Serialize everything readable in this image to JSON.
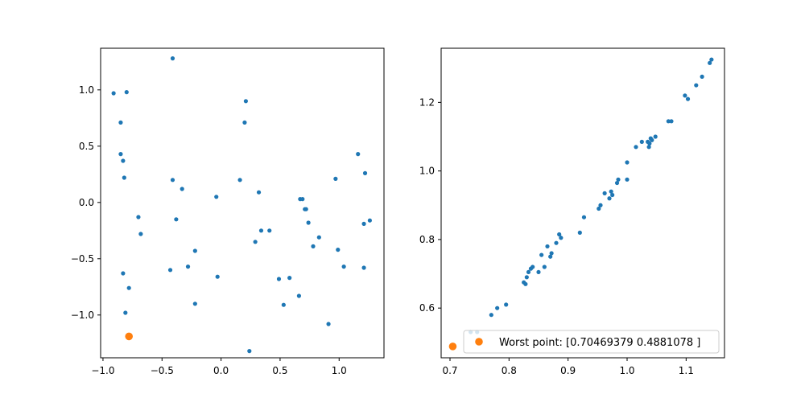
{
  "colors": {
    "blue": "#1f77b4",
    "orange": "#ff7f0e"
  },
  "chart_data": [
    {
      "type": "scatter",
      "title": "",
      "xlabel": "",
      "ylabel": "",
      "xlim": [
        -1.02,
        1.38
      ],
      "ylim": [
        -1.38,
        1.37
      ],
      "xticks": [
        -1.0,
        -0.5,
        0.0,
        0.5,
        1.0
      ],
      "xtick_labels": [
        "−1.0",
        "−0.5",
        "0.0",
        "0.5",
        "1.0"
      ],
      "yticks": [
        -1.0,
        -0.5,
        0.0,
        0.5,
        1.0
      ],
      "yticks_labels": [
        "−1.0",
        "−0.5",
        "0.0",
        "0.5",
        "1.0"
      ],
      "series": [
        {
          "color": "#1f77b4",
          "marker_size": "small",
          "points": [
            [
              -0.91,
              0.97
            ],
            [
              -0.8,
              0.98
            ],
            [
              -0.85,
              0.71
            ],
            [
              -0.85,
              0.43
            ],
            [
              -0.83,
              0.37
            ],
            [
              -0.82,
              0.22
            ],
            [
              -0.41,
              1.28
            ],
            [
              0.21,
              0.9
            ],
            [
              0.2,
              0.71
            ],
            [
              -0.7,
              -0.13
            ],
            [
              -0.68,
              -0.28
            ],
            [
              -0.41,
              0.2
            ],
            [
              -0.33,
              0.12
            ],
            [
              -0.38,
              -0.15
            ],
            [
              -0.22,
              -0.43
            ],
            [
              -0.28,
              -0.57
            ],
            [
              -0.43,
              -0.6
            ],
            [
              -0.22,
              -0.9
            ],
            [
              -0.83,
              -0.63
            ],
            [
              -0.78,
              -0.76
            ],
            [
              -0.81,
              -0.98
            ],
            [
              -0.04,
              0.05
            ],
            [
              -0.03,
              -0.66
            ],
            [
              0.16,
              0.2
            ],
            [
              0.32,
              0.09
            ],
            [
              0.34,
              -0.25
            ],
            [
              0.41,
              -0.25
            ],
            [
              0.29,
              -0.35
            ],
            [
              0.24,
              -1.32
            ],
            [
              0.49,
              -0.68
            ],
            [
              0.53,
              -0.91
            ],
            [
              0.58,
              -0.67
            ],
            [
              0.67,
              0.03
            ],
            [
              0.69,
              0.03
            ],
            [
              0.71,
              -0.06
            ],
            [
              0.72,
              -0.06
            ],
            [
              0.74,
              -0.18
            ],
            [
              0.78,
              -0.39
            ],
            [
              0.83,
              -0.31
            ],
            [
              0.66,
              -0.83
            ],
            [
              0.91,
              -1.08
            ],
            [
              0.97,
              0.21
            ],
            [
              0.99,
              -0.42
            ],
            [
              1.04,
              -0.57
            ],
            [
              1.16,
              0.43
            ],
            [
              1.22,
              0.26
            ],
            [
              1.21,
              -0.19
            ],
            [
              1.26,
              -0.16
            ],
            [
              1.21,
              -0.58
            ]
          ]
        },
        {
          "color": "#ff7f0e",
          "marker_size": "large",
          "points": [
            [
              -0.78,
              -1.19
            ]
          ]
        }
      ]
    },
    {
      "type": "scatter",
      "title": "",
      "xlabel": "",
      "ylabel": "",
      "xlim": [
        0.685,
        1.165
      ],
      "ylim": [
        0.455,
        1.358
      ],
      "xticks": [
        0.7,
        0.8,
        0.9,
        1.0,
        1.1
      ],
      "xtick_labels": [
        "0.7",
        "0.8",
        "0.9",
        "1.0",
        "1.1"
      ],
      "yticks": [
        0.6,
        0.8,
        1.0,
        1.2
      ],
      "yticks_labels": [
        "0.6",
        "0.8",
        "1.0",
        "1.2"
      ],
      "legend": {
        "position": "lower-right",
        "entries": [
          {
            "label": "Worst point: [0.70469379 0.4881078 ]",
            "color": "#ff7f0e"
          }
        ]
      },
      "series": [
        {
          "color": "#1f77b4",
          "marker_size": "small",
          "points": [
            [
              0.735,
              0.53
            ],
            [
              0.746,
              0.53
            ],
            [
              0.77,
              0.58
            ],
            [
              0.78,
              0.6
            ],
            [
              0.795,
              0.61
            ],
            [
              0.825,
              0.675
            ],
            [
              0.828,
              0.67
            ],
            [
              0.83,
              0.69
            ],
            [
              0.833,
              0.705
            ],
            [
              0.837,
              0.715
            ],
            [
              0.84,
              0.72
            ],
            [
              0.85,
              0.705
            ],
            [
              0.855,
              0.755
            ],
            [
              0.86,
              0.72
            ],
            [
              0.865,
              0.78
            ],
            [
              0.87,
              0.75
            ],
            [
              0.872,
              0.76
            ],
            [
              0.88,
              0.79
            ],
            [
              0.885,
              0.815
            ],
            [
              0.888,
              0.805
            ],
            [
              0.92,
              0.82
            ],
            [
              0.927,
              0.865
            ],
            [
              0.952,
              0.89
            ],
            [
              0.955,
              0.9
            ],
            [
              0.962,
              0.935
            ],
            [
              0.97,
              0.92
            ],
            [
              0.973,
              0.94
            ],
            [
              0.975,
              0.93
            ],
            [
              0.983,
              0.965
            ],
            [
              0.985,
              0.975
            ],
            [
              1.0,
              0.975
            ],
            [
              1.0,
              1.025
            ],
            [
              1.015,
              1.07
            ],
            [
              1.025,
              1.085
            ],
            [
              1.035,
              1.085
            ],
            [
              1.037,
              1.07
            ],
            [
              1.038,
              1.08
            ],
            [
              1.04,
              1.095
            ],
            [
              1.042,
              1.09
            ],
            [
              1.048,
              1.1
            ],
            [
              1.07,
              1.145
            ],
            [
              1.075,
              1.145
            ],
            [
              1.098,
              1.22
            ],
            [
              1.103,
              1.21
            ],
            [
              1.117,
              1.25
            ],
            [
              1.127,
              1.275
            ],
            [
              1.14,
              1.315
            ],
            [
              1.143,
              1.325
            ]
          ]
        },
        {
          "color": "#ff7f0e",
          "marker_size": "large",
          "points": [
            [
              0.70469379,
              0.4881078
            ]
          ]
        }
      ]
    }
  ]
}
